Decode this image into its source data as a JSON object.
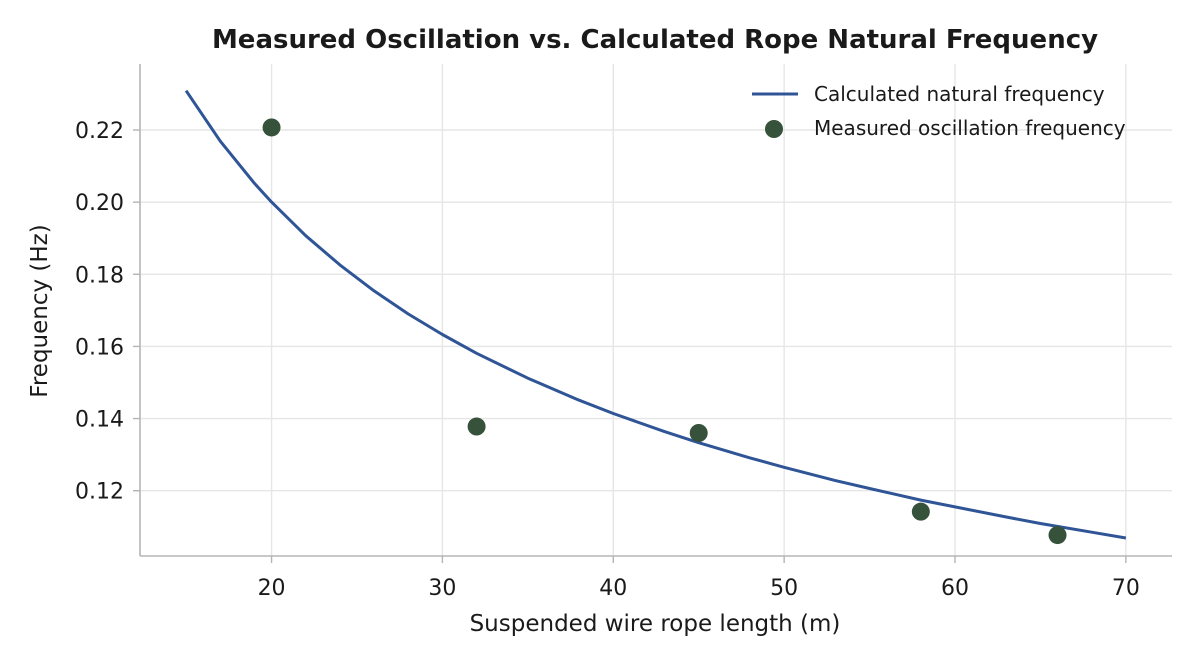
{
  "chart_data": {
    "type": "line",
    "title": "Measured Oscillation vs. Calculated Rope Natural Frequency",
    "xlabel": "Suspended wire rope length (m)",
    "ylabel": "Frequency (Hz)",
    "xlim": [
      12.3,
      72.7
    ],
    "ylim": [
      0.1019,
      0.2383
    ],
    "xticks": [
      20,
      30,
      40,
      50,
      60,
      70
    ],
    "yticks": [
      0.12,
      0.14,
      0.16,
      0.18,
      0.2,
      0.22
    ],
    "xtick_labels": [
      "20",
      "30",
      "40",
      "50",
      "60",
      "70"
    ],
    "ytick_labels": [
      "0.12",
      "0.14",
      "0.16",
      "0.18",
      "0.20",
      "0.22"
    ],
    "grid": true,
    "legend_position": "top-right",
    "series": [
      {
        "name": "Calculated natural frequency",
        "kind": "line",
        "color": "#2f5597",
        "x": [
          15,
          17,
          19,
          20,
          22,
          24,
          26,
          28,
          30,
          32,
          35,
          38,
          40,
          43,
          45,
          48,
          50,
          53,
          55,
          58,
          60,
          63,
          65,
          68,
          70
        ],
        "y": [
          0.2309,
          0.2169,
          0.2052,
          0.2,
          0.1907,
          0.1826,
          0.1754,
          0.169,
          0.1633,
          0.1581,
          0.1512,
          0.1451,
          0.1414,
          0.1364,
          0.1333,
          0.1291,
          0.1265,
          0.1228,
          0.1206,
          0.1174,
          0.1155,
          0.1127,
          0.1109,
          0.1085,
          0.1069
        ]
      },
      {
        "name": "Measured oscillation frequency",
        "kind": "scatter",
        "color": "#36523a",
        "x": [
          20,
          32,
          45,
          58,
          66
        ],
        "y": [
          0.2207,
          0.1378,
          0.136,
          0.1142,
          0.1077
        ]
      }
    ]
  }
}
